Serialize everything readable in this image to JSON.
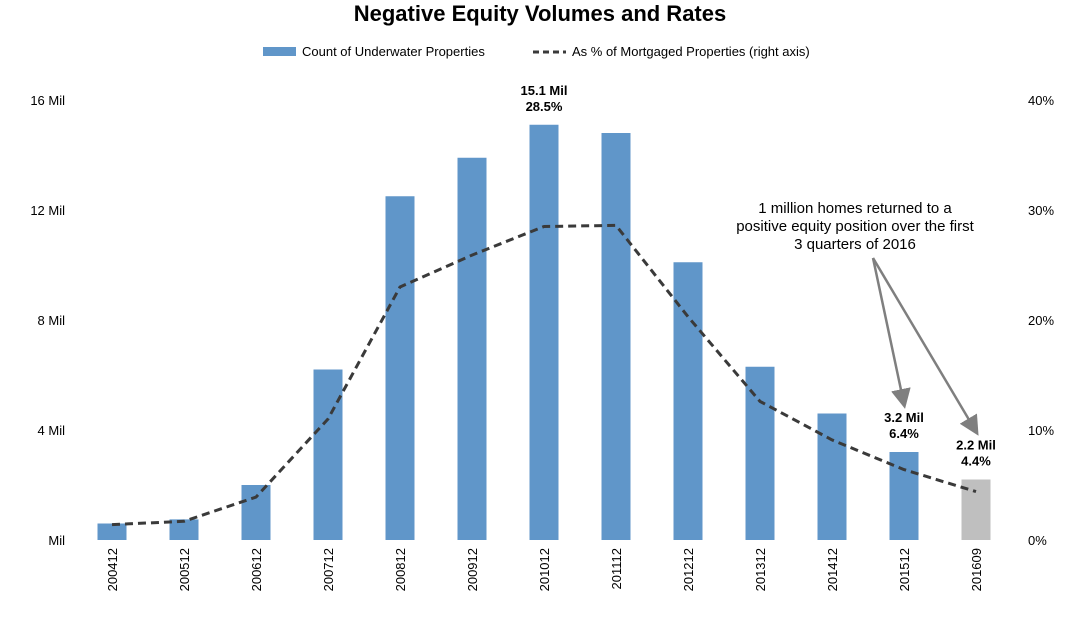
{
  "chart_data": {
    "type": "bar",
    "title": "Negative Equity Volumes and Rates",
    "categories": [
      "200412",
      "200512",
      "200612",
      "200712",
      "200812",
      "200912",
      "201012",
      "201112",
      "201212",
      "201312",
      "201412",
      "201512",
      "201609"
    ],
    "series": [
      {
        "name": "Count of Underwater Properties",
        "kind": "bar",
        "axis": "left",
        "unit": "Mil",
        "values": [
          0.6,
          0.75,
          2.0,
          6.2,
          12.5,
          13.9,
          15.1,
          14.8,
          10.1,
          6.3,
          4.6,
          3.2,
          2.2
        ]
      },
      {
        "name": "As % of Mortgaged Properties (right axis)",
        "kind": "line",
        "style": "dashed",
        "axis": "right",
        "unit": "%",
        "values": [
          1.4,
          1.7,
          3.9,
          11.0,
          23.0,
          25.9,
          28.5,
          28.6,
          20.3,
          12.6,
          9.1,
          6.4,
          4.4
        ]
      }
    ],
    "y_left": {
      "min": 0,
      "max": 16,
      "ticks": [
        "Mil",
        "4 Mil",
        "8 Mil",
        "12 Mil",
        "16 Mil"
      ]
    },
    "y_right": {
      "min": 0,
      "max": 40,
      "ticks": [
        "0%",
        "10%",
        "20%",
        "30%",
        "40%"
      ]
    },
    "legend": {
      "position": "top",
      "items": [
        "Count of Underwater Properties",
        "As % of Mortgaged Properties (right axis)"
      ]
    },
    "data_labels": [
      {
        "category": "201012",
        "lines": [
          "15.1 Mil",
          "28.5%"
        ]
      },
      {
        "category": "201512",
        "lines": [
          "3.2 Mil",
          "6.4%"
        ]
      },
      {
        "category": "201609",
        "lines": [
          "2.2 Mil",
          "4.4%"
        ]
      }
    ],
    "annotation": {
      "lines": [
        "1 million homes returned to a",
        "positive equity position over the first",
        "3 quarters of 2016"
      ],
      "targets": [
        "201512",
        "201609"
      ]
    },
    "highlight_category": "201609"
  },
  "colors": {
    "bar": "#6096c9",
    "bar_highlight": "#bfbfbf",
    "line": "#3a3a3a",
    "arrow": "#7f7f7f",
    "text": "#000000"
  }
}
